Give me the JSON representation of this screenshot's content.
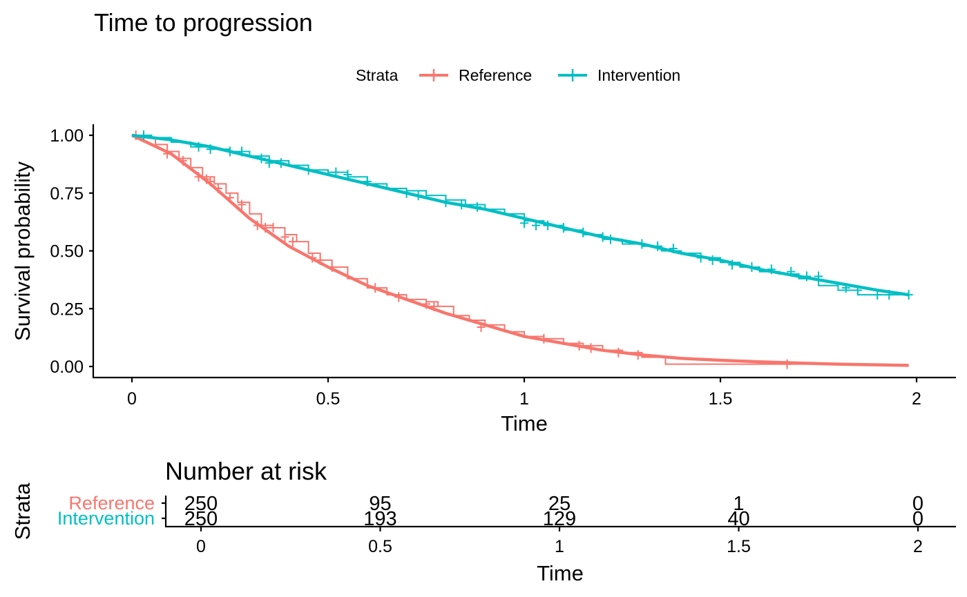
{
  "chart_data": [
    {
      "type": "line",
      "title": "Time to progression",
      "xlabel": "Time",
      "ylabel": "Survival probability",
      "xlim": [
        -0.1,
        2.1
      ],
      "ylim": [
        -0.05,
        1.05
      ],
      "xticks": [
        0,
        0.5,
        1,
        1.5,
        2
      ],
      "xtick_labels": [
        "0",
        "0.5",
        "1",
        "1.5",
        "2"
      ],
      "yticks": [
        0,
        0.25,
        0.5,
        0.75,
        1
      ],
      "ytick_labels": [
        "0.00",
        "0.25",
        "0.50",
        "0.75",
        "1.00"
      ],
      "grid": false,
      "legend": {
        "title": "Strata",
        "position": "top"
      },
      "series": [
        {
          "name": "Reference",
          "color": "#F8766D",
          "smooth": {
            "x": [
              0,
              0.1,
              0.2,
              0.3,
              0.4,
              0.5,
              0.6,
              0.7,
              0.8,
              0.9,
              1.0,
              1.1,
              1.2,
              1.3,
              1.4,
              1.5,
              1.6,
              1.7,
              1.8,
              1.9,
              1.98
            ],
            "y": [
              1.0,
              0.92,
              0.79,
              0.64,
              0.52,
              0.43,
              0.35,
              0.29,
              0.23,
              0.18,
              0.13,
              0.1,
              0.07,
              0.05,
              0.035,
              0.027,
              0.02,
              0.015,
              0.01,
              0.007,
              0.005
            ]
          },
          "km": {
            "x": [
              0,
              0.03,
              0.06,
              0.09,
              0.12,
              0.15,
              0.18,
              0.21,
              0.24,
              0.27,
              0.3,
              0.33,
              0.36,
              0.39,
              0.42,
              0.45,
              0.48,
              0.51,
              0.55,
              0.6,
              0.65,
              0.7,
              0.75,
              0.78,
              0.82,
              0.86,
              0.9,
              0.95,
              1.0,
              1.05,
              1.1,
              1.15,
              1.2,
              1.25,
              1.3,
              1.36,
              1.45,
              1.55,
              1.67,
              1.8
            ],
            "y": [
              1.0,
              0.99,
              0.96,
              0.93,
              0.9,
              0.86,
              0.82,
              0.79,
              0.75,
              0.71,
              0.66,
              0.61,
              0.6,
              0.57,
              0.54,
              0.49,
              0.46,
              0.43,
              0.38,
              0.34,
              0.31,
              0.29,
              0.28,
              0.26,
              0.22,
              0.2,
              0.18,
              0.15,
              0.13,
              0.12,
              0.1,
              0.09,
              0.07,
              0.06,
              0.04,
              0.01,
              0.01,
              0.01,
              0.01,
              0.01
            ]
          },
          "censor": {
            "x": [
              0.01,
              0.03,
              0.09,
              0.13,
              0.17,
              0.19,
              0.2,
              0.22,
              0.25,
              0.28,
              0.32,
              0.34,
              0.36,
              0.39,
              0.41,
              0.46,
              0.48,
              0.51,
              0.62,
              0.68,
              0.75,
              0.77,
              0.89,
              1.05,
              1.14,
              1.17,
              1.24,
              1.29,
              1.67
            ],
            "y": [
              1.0,
              0.99,
              0.92,
              0.89,
              0.82,
              0.81,
              0.8,
              0.77,
              0.73,
              0.7,
              0.61,
              0.6,
              0.6,
              0.56,
              0.54,
              0.47,
              0.46,
              0.43,
              0.34,
              0.3,
              0.27,
              0.26,
              0.17,
              0.12,
              0.09,
              0.08,
              0.06,
              0.05,
              0.01
            ]
          }
        },
        {
          "name": "Intervention",
          "color": "#00BFC4",
          "smooth": {
            "x": [
              0,
              0.1,
              0.2,
              0.3,
              0.4,
              0.5,
              0.6,
              0.7,
              0.8,
              0.9,
              1.0,
              1.1,
              1.2,
              1.3,
              1.4,
              1.5,
              1.6,
              1.7,
              1.8,
              1.9,
              1.98
            ],
            "y": [
              1.0,
              0.98,
              0.95,
              0.91,
              0.87,
              0.83,
              0.79,
              0.75,
              0.71,
              0.68,
              0.64,
              0.6,
              0.56,
              0.53,
              0.49,
              0.46,
              0.42,
              0.39,
              0.36,
              0.33,
              0.31
            ]
          },
          "km": {
            "x": [
              0,
              0.05,
              0.1,
              0.15,
              0.2,
              0.25,
              0.3,
              0.35,
              0.4,
              0.45,
              0.5,
              0.55,
              0.6,
              0.65,
              0.7,
              0.75,
              0.8,
              0.85,
              0.9,
              0.95,
              1.0,
              1.05,
              1.1,
              1.15,
              1.2,
              1.25,
              1.3,
              1.35,
              1.4,
              1.45,
              1.5,
              1.55,
              1.6,
              1.65,
              1.7,
              1.75,
              1.8,
              1.85,
              1.9,
              1.95,
              1.98
            ],
            "y": [
              1.0,
              0.99,
              0.97,
              0.95,
              0.94,
              0.93,
              0.91,
              0.89,
              0.87,
              0.85,
              0.84,
              0.82,
              0.79,
              0.77,
              0.76,
              0.74,
              0.72,
              0.7,
              0.68,
              0.66,
              0.63,
              0.61,
              0.59,
              0.57,
              0.55,
              0.53,
              0.52,
              0.5,
              0.49,
              0.47,
              0.45,
              0.43,
              0.41,
              0.4,
              0.38,
              0.35,
              0.33,
              0.31,
              0.31,
              0.31,
              0.31
            ]
          },
          "censor": {
            "x": [
              0.03,
              0.17,
              0.2,
              0.25,
              0.28,
              0.33,
              0.35,
              0.38,
              0.45,
              0.52,
              0.55,
              0.6,
              0.7,
              0.73,
              0.8,
              0.84,
              0.88,
              1.0,
              1.03,
              1.06,
              1.1,
              1.15,
              1.2,
              1.22,
              1.3,
              1.34,
              1.38,
              1.45,
              1.48,
              1.53,
              1.58,
              1.63,
              1.68,
              1.72,
              1.75,
              1.82,
              1.85,
              1.9,
              1.93,
              1.98
            ],
            "y": [
              1.0,
              0.95,
              0.94,
              0.93,
              0.93,
              0.9,
              0.88,
              0.88,
              0.85,
              0.84,
              0.83,
              0.8,
              0.75,
              0.74,
              0.71,
              0.7,
              0.69,
              0.62,
              0.61,
              0.61,
              0.6,
              0.58,
              0.56,
              0.55,
              0.53,
              0.52,
              0.51,
              0.47,
              0.46,
              0.44,
              0.43,
              0.42,
              0.41,
              0.39,
              0.39,
              0.34,
              0.33,
              0.31,
              0.31,
              0.31
            ]
          }
        }
      ]
    },
    {
      "type": "table",
      "title": "Number at risk",
      "xlabel": "Time",
      "ylabel": "Strata",
      "xticks": [
        0,
        0.5,
        1,
        1.5,
        2
      ],
      "xtick_labels": [
        "0",
        "0.5",
        "1",
        "1.5",
        "2"
      ],
      "rows": [
        {
          "name": "Reference",
          "color": "#F8766D",
          "values": [
            "250",
            "95",
            "25",
            "1",
            "0"
          ]
        },
        {
          "name": "Intervention",
          "color": "#00BFC4",
          "values": [
            "250",
            "193",
            "129",
            "40",
            "0"
          ]
        }
      ]
    }
  ]
}
